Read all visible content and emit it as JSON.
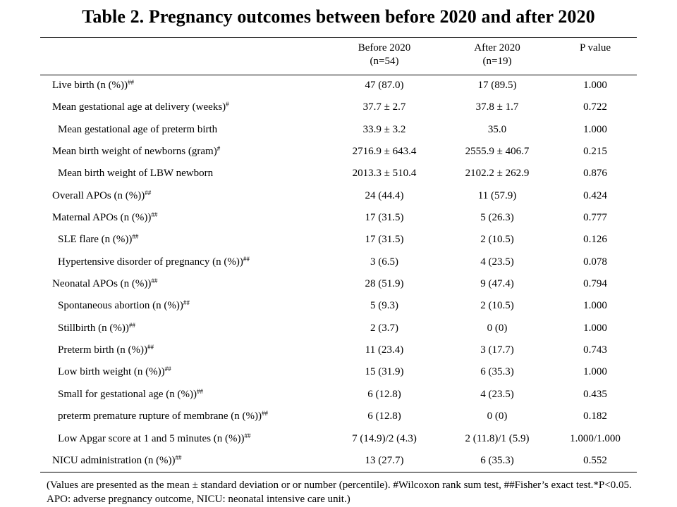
{
  "title": "Table 2. Pregnancy outcomes between before 2020 and after 2020",
  "columns": {
    "before_label": "Before 2020",
    "before_n": "(n=54)",
    "after_label": "After 2020",
    "after_n": "(n=19)",
    "p_label": "P value"
  },
  "rows": [
    {
      "label": "Live birth (n (%))",
      "sup": "##",
      "before": "47 (87.0)",
      "after": "17 (89.5)",
      "p": "1.000",
      "indent": false
    },
    {
      "label": "Mean gestational age at delivery (weeks)",
      "sup": "#",
      "before": "37.7 ± 2.7",
      "after": "37.8 ± 1.7",
      "p": "0.722",
      "indent": false
    },
    {
      "label": "Mean gestational age of preterm birth",
      "sup": "",
      "before": "33.9 ± 3.2",
      "after": "35.0",
      "p": "1.000",
      "indent": true
    },
    {
      "label": "Mean birth weight of newborns (gram)",
      "sup": "#",
      "before": "2716.9 ± 643.4",
      "after": "2555.9 ± 406.7",
      "p": "0.215",
      "indent": false
    },
    {
      "label": "Mean birth weight of LBW newborn",
      "sup": "",
      "before": "2013.3 ± 510.4",
      "after": "2102.2 ± 262.9",
      "p": "0.876",
      "indent": true
    },
    {
      "label": "Overall APOs (n (%))",
      "sup": "##",
      "before": "24 (44.4)",
      "after": "11 (57.9)",
      "p": "0.424",
      "indent": false
    },
    {
      "label": "Maternal APOs (n (%))",
      "sup": "##",
      "before": "17 (31.5)",
      "after": "5 (26.3)",
      "p": "0.777",
      "indent": false
    },
    {
      "label": "SLE flare (n (%))",
      "sup": "##",
      "before": "17 (31.5)",
      "after": "2 (10.5)",
      "p": "0.126",
      "indent": true
    },
    {
      "label": "Hypertensive disorder of pregnancy (n (%))",
      "sup": "##",
      "before": "3 (6.5)",
      "after": "4 (23.5)",
      "p": "0.078",
      "indent": true
    },
    {
      "label": "Neonatal APOs (n (%))",
      "sup": "##",
      "before": "28 (51.9)",
      "after": "9 (47.4)",
      "p": "0.794",
      "indent": false
    },
    {
      "label": "Spontaneous abortion (n (%))",
      "sup": "##",
      "before": "5 (9.3)",
      "after": "2 (10.5)",
      "p": "1.000",
      "indent": true
    },
    {
      "label": "Stillbirth (n (%))",
      "sup": "##",
      "before": "2 (3.7)",
      "after": "0 (0)",
      "p": "1.000",
      "indent": true
    },
    {
      "label": "Preterm birth (n (%))",
      "sup": "##",
      "before": "11 (23.4)",
      "after": "3 (17.7)",
      "p": "0.743",
      "indent": true
    },
    {
      "label": "Low birth weight (n (%))",
      "sup": "##",
      "before": "15 (31.9)",
      "after": "6 (35.3)",
      "p": "1.000",
      "indent": true
    },
    {
      "label": "Small for gestational age (n (%))",
      "sup": "##",
      "before": "6 (12.8)",
      "after": "4 (23.5)",
      "p": "0.435",
      "indent": true
    },
    {
      "label": "preterm premature rupture of membrane (n (%))",
      "sup": "##",
      "before": "6 (12.8)",
      "after": "0 (0)",
      "p": "0.182",
      "indent": true
    },
    {
      "label": "Low Apgar score at 1 and 5 minutes (n (%))",
      "sup": "##",
      "before": "7 (14.9)/2 (4.3)",
      "after": "2 (11.8)/1 (5.9)",
      "p": "1.000/1.000",
      "indent": true
    },
    {
      "label": "NICU administration (n (%))",
      "sup": "##",
      "before": "13 (27.7)",
      "after": "6 (35.3)",
      "p": "0.552",
      "indent": false
    }
  ],
  "footnote": "(Values are presented as the mean ± standard deviation or or number (percentile). #Wilcoxon rank sum test, ##Fisher’s exact test.*P<0.05. APO: adverse pregnancy outcome, NICU: neonatal intensive care unit.)"
}
